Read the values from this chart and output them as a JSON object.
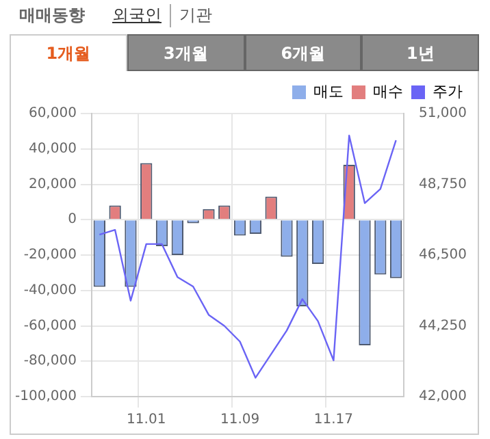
{
  "chart_data": {
    "type": "bar",
    "title": "매매동향",
    "annotations": [
      "외국인",
      "기관",
      "1개월",
      "3개월",
      "6개월",
      "1년"
    ],
    "categories": [
      null,
      null,
      null,
      "11.01",
      null,
      null,
      null,
      null,
      null,
      "11.09",
      null,
      null,
      null,
      null,
      null,
      "11.17",
      null,
      null,
      null,
      null
    ],
    "stacked": true,
    "grid": true,
    "legend": "top right",
    "marker": "none",
    "ylim": [
      -100000,
      60000
    ],
    "yticks": [
      {
        "value": 60000,
        "label": "60,000"
      },
      {
        "value": 40000,
        "label": "40,000"
      },
      {
        "value": 20000,
        "label": "20,000"
      },
      {
        "value": 0,
        "label": "0"
      },
      {
        "value": -20000,
        "label": "-20,000"
      },
      {
        "value": -40000,
        "label": "-40,000"
      },
      {
        "value": -60000,
        "label": "-60,000"
      },
      {
        "value": -80000,
        "label": "-80,000"
      },
      {
        "value": -100000,
        "label": "-100,000"
      }
    ],
    "y2lim": [
      42000,
      51000
    ],
    "y2ticks": [
      {
        "value": 42000,
        "label": "42,000"
      },
      {
        "value": 44250,
        "label": "44,250"
      },
      {
        "value": 46500,
        "label": "46,500"
      },
      {
        "value": 48750,
        "label": "48,750"
      },
      {
        "value": 51000,
        "label": "51,000"
      }
    ],
    "series": [
      {
        "name": "매도",
        "color": "#8eaeea",
        "values": [
          -38000,
          0,
          -38000,
          0,
          -15000,
          -20000,
          -2000,
          0,
          0,
          -9000,
          -8000,
          0,
          -21000,
          -49000,
          -25000,
          0,
          0,
          -71000,
          -31000,
          -33000
        ]
      },
      {
        "name": "매수",
        "color": "#e27e7e",
        "values": [
          0,
          8000,
          0,
          32000,
          0,
          0,
          0,
          6000,
          8000,
          0,
          0,
          13000,
          0,
          0,
          0,
          0,
          31000,
          0,
          0,
          0
        ]
      },
      {
        "name": "주가",
        "type": "line",
        "axis": "y2",
        "color": "#6a64f5",
        "values": [
          47150,
          47300,
          45050,
          46850,
          46850,
          45800,
          45500,
          44600,
          44250,
          43750,
          42600,
          43350,
          44100,
          45100,
          44400,
          43150,
          50300,
          48150,
          48600,
          50150
        ]
      }
    ]
  }
}
